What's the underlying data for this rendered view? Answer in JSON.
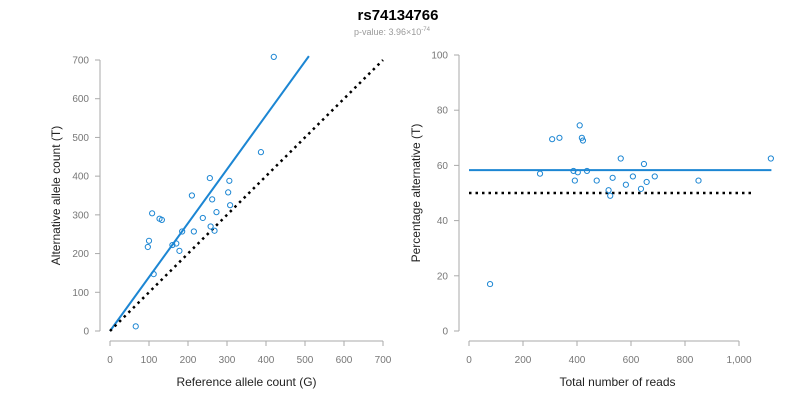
{
  "header": {
    "title": "rs74134766",
    "pvalue_prefix": "p-value: 3.96×10",
    "pvalue_exponent": "-74"
  },
  "colors": {
    "points": "#1c86d3",
    "fit_line": "#1c86d3",
    "reference_line": "#000000",
    "axis": "#aaaaaa"
  },
  "chart_data": [
    {
      "type": "scatter",
      "title": "",
      "xlabel": "Reference allele count (G)",
      "ylabel": "Alternative allele count (T)",
      "xlim": [
        0,
        700
      ],
      "ylim": [
        0,
        700
      ],
      "xticks": [
        0,
        100,
        200,
        300,
        400,
        500,
        600,
        700
      ],
      "yticks": [
        0,
        100,
        200,
        300,
        400,
        500,
        600,
        700
      ],
      "xtick_labels": [
        "0",
        "100",
        "200",
        "300",
        "400",
        "500",
        "600",
        "700"
      ],
      "ytick_labels": [
        "0",
        "100",
        "200",
        "300",
        "400",
        "500",
        "600",
        "700"
      ],
      "points": [
        {
          "x": 420,
          "y": 708
        },
        {
          "x": 387,
          "y": 462
        },
        {
          "x": 256,
          "y": 395
        },
        {
          "x": 306,
          "y": 388
        },
        {
          "x": 210,
          "y": 350
        },
        {
          "x": 262,
          "y": 340
        },
        {
          "x": 303,
          "y": 358
        },
        {
          "x": 308,
          "y": 325
        },
        {
          "x": 273,
          "y": 307
        },
        {
          "x": 238,
          "y": 292
        },
        {
          "x": 108,
          "y": 304
        },
        {
          "x": 127,
          "y": 290
        },
        {
          "x": 133,
          "y": 287
        },
        {
          "x": 185,
          "y": 257
        },
        {
          "x": 215,
          "y": 257
        },
        {
          "x": 268,
          "y": 259
        },
        {
          "x": 258,
          "y": 270
        },
        {
          "x": 100,
          "y": 233
        },
        {
          "x": 97,
          "y": 217
        },
        {
          "x": 170,
          "y": 226
        },
        {
          "x": 160,
          "y": 222
        },
        {
          "x": 178,
          "y": 207
        },
        {
          "x": 112,
          "y": 147
        },
        {
          "x": 66,
          "y": 12
        }
      ],
      "lines": [
        {
          "role": "fit",
          "style": "solid",
          "x": [
            0,
            510
          ],
          "y": [
            0,
            710
          ]
        },
        {
          "role": "equal-ratio",
          "style": "dotted",
          "x": [
            0,
            700
          ],
          "y": [
            0,
            700
          ]
        }
      ],
      "grid": false,
      "legend": false
    },
    {
      "type": "scatter",
      "title": "",
      "xlabel": "Total number of reads",
      "ylabel": "Percentage alternative (T)",
      "xlim": [
        0,
        1100
      ],
      "ylim": [
        0,
        100
      ],
      "xticks": [
        0,
        200,
        400,
        600,
        800,
        1000
      ],
      "yticks": [
        0,
        20,
        40,
        60,
        80,
        100
      ],
      "xtick_labels": [
        "0",
        "200",
        "400",
        "600",
        "800",
        "1,000"
      ],
      "ytick_labels": [
        "0",
        "20",
        "40",
        "60",
        "80",
        "100"
      ],
      "points": [
        {
          "x": 78,
          "y": 17
        },
        {
          "x": 263,
          "y": 57
        },
        {
          "x": 308,
          "y": 69.5
        },
        {
          "x": 335,
          "y": 70
        },
        {
          "x": 387,
          "y": 58
        },
        {
          "x": 392,
          "y": 54.5
        },
        {
          "x": 403,
          "y": 57.5
        },
        {
          "x": 410,
          "y": 74.5
        },
        {
          "x": 418,
          "y": 70
        },
        {
          "x": 422,
          "y": 69
        },
        {
          "x": 437,
          "y": 58
        },
        {
          "x": 473,
          "y": 54.5
        },
        {
          "x": 517,
          "y": 51
        },
        {
          "x": 523,
          "y": 49
        },
        {
          "x": 532,
          "y": 55.5
        },
        {
          "x": 562,
          "y": 62.5
        },
        {
          "x": 581,
          "y": 53
        },
        {
          "x": 607,
          "y": 56
        },
        {
          "x": 637,
          "y": 51.5
        },
        {
          "x": 648,
          "y": 60.5
        },
        {
          "x": 658,
          "y": 54
        },
        {
          "x": 688,
          "y": 56
        },
        {
          "x": 850,
          "y": 54.5
        },
        {
          "x": 1118,
          "y": 62.5
        }
      ],
      "lines": [
        {
          "role": "fit",
          "style": "solid",
          "x": [
            0,
            1120
          ],
          "y": [
            58.3,
            58.3
          ]
        },
        {
          "role": "equal-ratio",
          "style": "dotted",
          "x": [
            0,
            1050
          ],
          "y": [
            50,
            50
          ]
        }
      ],
      "grid": false,
      "legend": false
    }
  ]
}
